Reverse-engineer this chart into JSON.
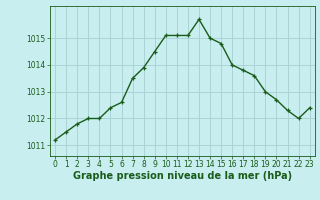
{
  "x": [
    0,
    1,
    2,
    3,
    4,
    5,
    6,
    7,
    8,
    9,
    10,
    11,
    12,
    13,
    14,
    15,
    16,
    17,
    18,
    19,
    20,
    21,
    22,
    23
  ],
  "y": [
    1011.2,
    1011.5,
    1011.8,
    1012.0,
    1012.0,
    1012.4,
    1012.6,
    1013.5,
    1013.9,
    1014.5,
    1015.1,
    1015.1,
    1015.1,
    1015.7,
    1015.0,
    1014.8,
    1014.0,
    1013.8,
    1013.6,
    1013.0,
    1012.7,
    1012.3,
    1012.0,
    1012.4
  ],
  "line_color": "#1a5c1a",
  "marker": "+",
  "marker_size": 3.5,
  "linewidth": 1.0,
  "bg_color": "#c8eef0",
  "grid_color": "#aad4d6",
  "xlabel": "Graphe pression niveau de la mer (hPa)",
  "xlabel_fontsize": 7,
  "xlabel_fontweight": "bold",
  "xlabel_color": "#1a5c1a",
  "tick_color": "#1a5c1a",
  "tick_fontsize": 5.5,
  "ylim": [
    1010.6,
    1016.2
  ],
  "yticks": [
    1011,
    1012,
    1013,
    1014,
    1015
  ],
  "xlim": [
    -0.5,
    23.5
  ],
  "xticks": [
    0,
    1,
    2,
    3,
    4,
    5,
    6,
    7,
    8,
    9,
    10,
    11,
    12,
    13,
    14,
    15,
    16,
    17,
    18,
    19,
    20,
    21,
    22,
    23
  ]
}
